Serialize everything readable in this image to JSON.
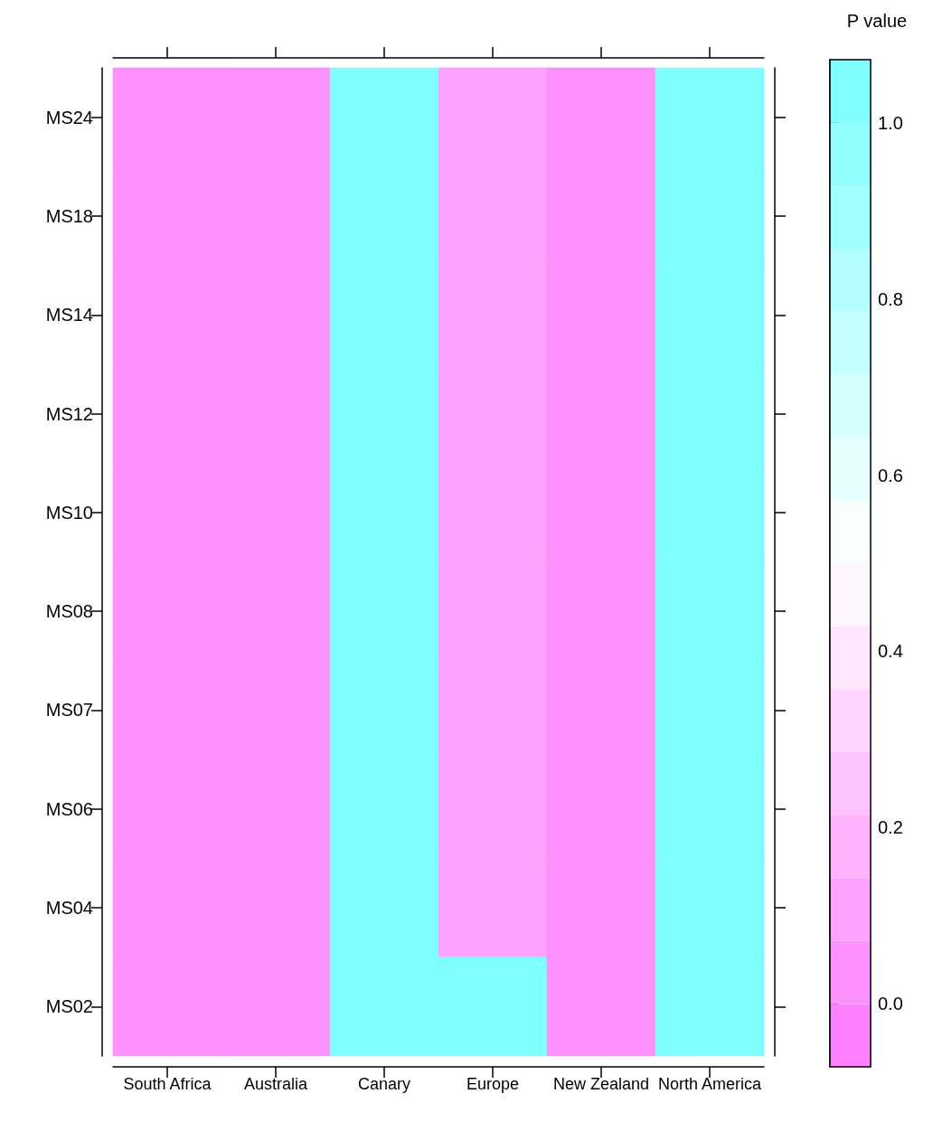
{
  "chart_data": {
    "type": "heatmap",
    "clabel": "P value",
    "categories": [
      "South Africa",
      "Australia",
      "Canary",
      "Europe",
      "New Zealand",
      "North America"
    ],
    "y_categories": [
      "MS24",
      "MS18",
      "MS14",
      "MS12",
      "MS10",
      "MS08",
      "MS07",
      "MS06",
      "MS04",
      "MS02"
    ],
    "cells": [
      [
        0.03,
        0.03,
        1.0,
        0.1,
        0.03,
        1.0
      ],
      [
        0.03,
        0.03,
        1.0,
        0.1,
        0.03,
        1.0
      ],
      [
        0.03,
        0.03,
        1.0,
        0.1,
        0.03,
        1.0
      ],
      [
        0.03,
        0.03,
        1.0,
        0.1,
        0.03,
        1.0
      ],
      [
        0.03,
        0.03,
        1.0,
        0.1,
        0.03,
        1.0
      ],
      [
        0.03,
        0.03,
        1.0,
        0.1,
        0.03,
        1.0
      ],
      [
        0.03,
        0.03,
        1.0,
        0.1,
        0.03,
        1.0
      ],
      [
        0.03,
        0.03,
        1.0,
        0.1,
        0.03,
        1.0
      ],
      [
        0.03,
        0.03,
        1.0,
        0.1,
        0.03,
        1.0
      ],
      [
        0.03,
        0.03,
        1.0,
        1.0,
        0.03,
        1.0
      ]
    ],
    "clim": [
      -0.0714,
      1.0714
    ],
    "cticks": [
      {
        "value": 0,
        "label": "0.0"
      },
      0.2,
      0.4,
      0.6,
      0.8,
      {
        "value": 1,
        "label": "1.0"
      }
    ]
  }
}
